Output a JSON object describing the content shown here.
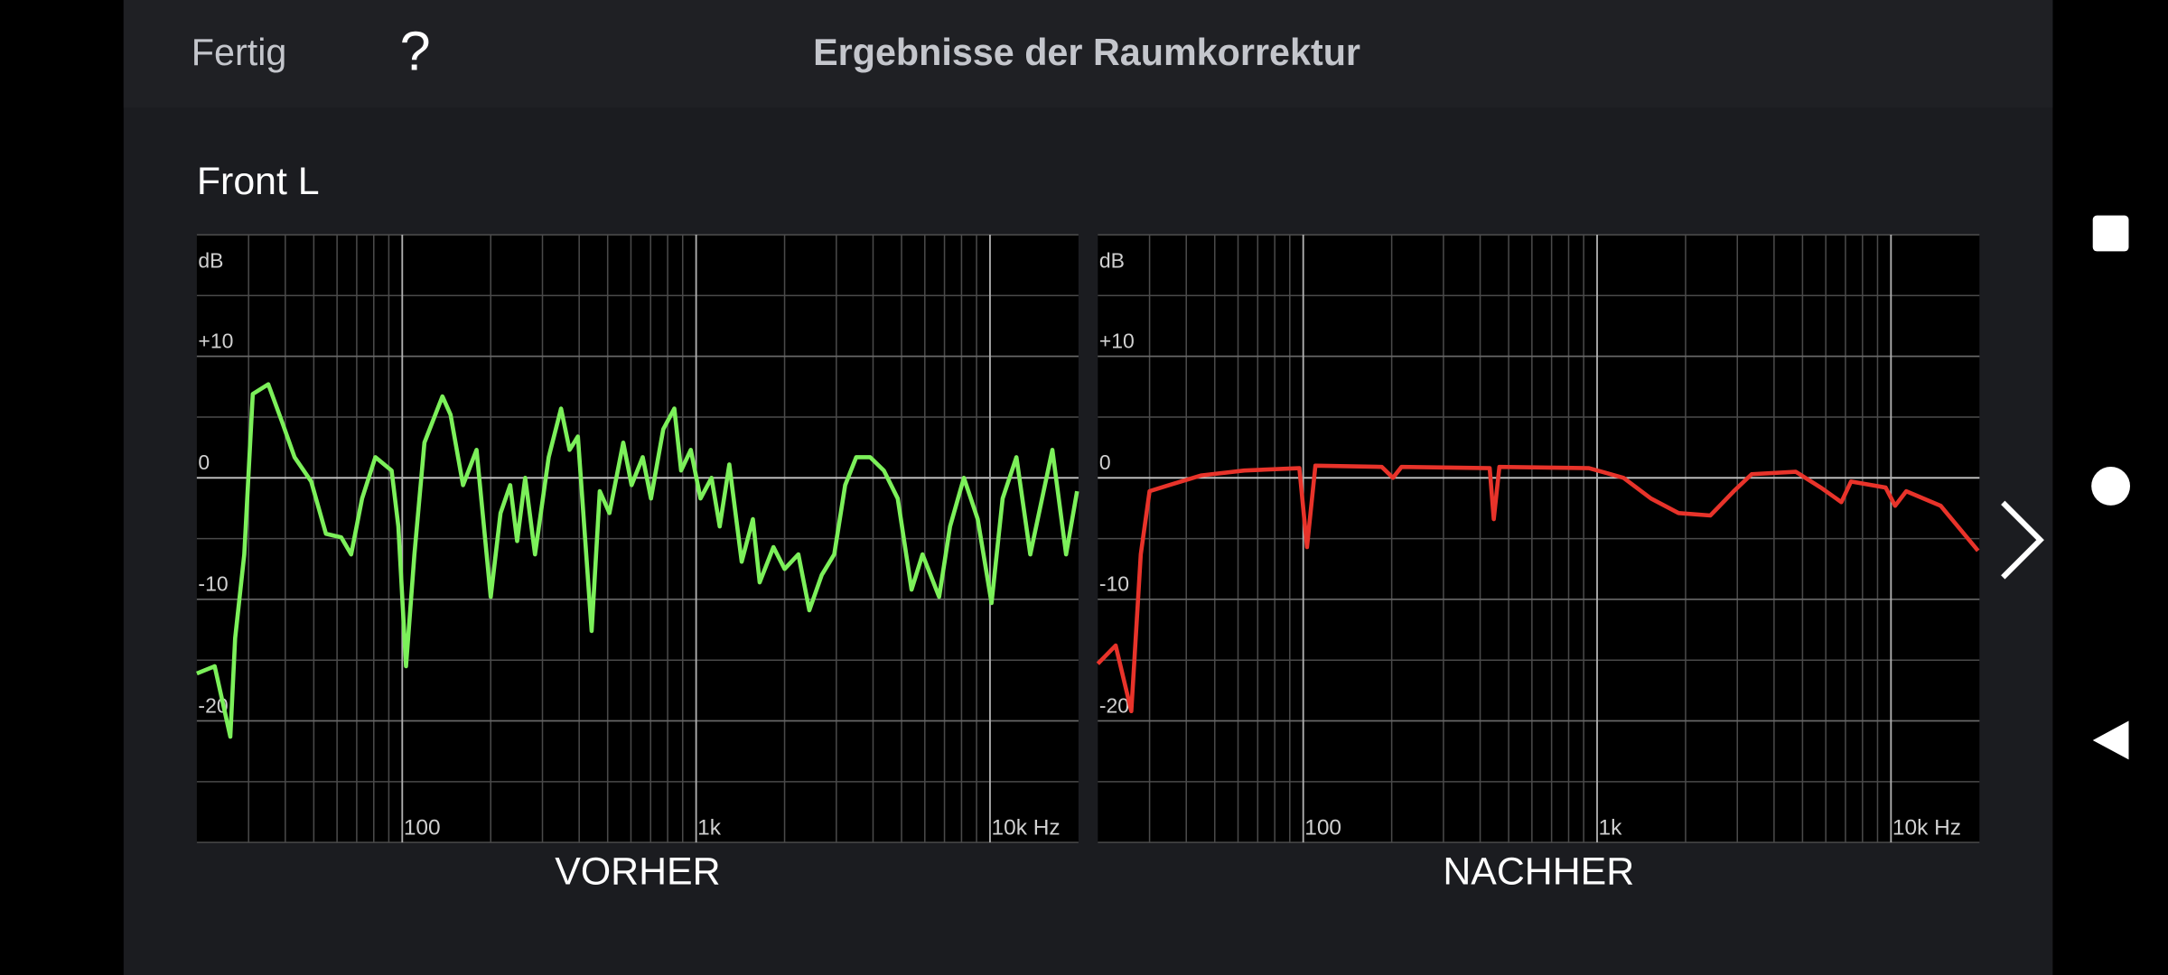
{
  "header": {
    "done": "Fertig",
    "help": "?",
    "title": "Ergebnisse der Raumkorrektur"
  },
  "section_title": "Front L",
  "chart_data": [
    {
      "type": "line",
      "title": "VORHER",
      "y_label": "dB",
      "x_scale": "log",
      "xlim": [
        20,
        20000
      ],
      "ylim": [
        -30,
        20
      ],
      "xticks": [
        100,
        {
          "value": 1000,
          "label": "1k"
        },
        {
          "value": 10000,
          "label": "10k Hz"
        }
      ],
      "yticks": [
        {
          "value": 10,
          "label": "+10"
        },
        0,
        -10,
        -20
      ],
      "y_gridlines": [
        -30,
        -25,
        -20,
        -15,
        -10,
        -5,
        0,
        5,
        10,
        15,
        20
      ],
      "x_minor_grid": true,
      "series": [
        {
          "color": "#7cf05a",
          "x": [
            20,
            23,
            26,
            27,
            29,
            31,
            35,
            39,
            43,
            49,
            55,
            62,
            67,
            73,
            81,
            92,
            97,
            103,
            110,
            119,
            137,
            146,
            161,
            179,
            200,
            216,
            233,
            246,
            262,
            283,
            315,
            347,
            371,
            396,
            441,
            470,
            507,
            565,
            603,
            658,
            702,
            773,
            843,
            889,
            959,
            1035,
            1128,
            1203,
            1297,
            1429,
            1560,
            1645,
            1833,
            2000,
            2228,
            2428,
            2675,
            2951,
            3215,
            3506,
            3907,
            4354,
            4853,
            5408,
            5893,
            6712,
            7313,
            8150,
            9082,
            10120,
            11040,
            12300,
            13710,
            16300,
            18150,
            19780
          ],
          "values": [
            -16.1,
            -15.5,
            -21.3,
            -13.2,
            -6.3,
            6.9,
            7.7,
            4.6,
            1.7,
            -0.3,
            -4.6,
            -4.9,
            -6.3,
            -1.7,
            1.7,
            0.6,
            -4.0,
            -15.5,
            -6.3,
            2.9,
            6.7,
            5.2,
            -0.6,
            2.3,
            -9.8,
            -2.9,
            -0.6,
            -5.2,
            0,
            -6.3,
            1.7,
            5.7,
            2.3,
            3.4,
            -12.6,
            -1.1,
            -2.9,
            2.9,
            -0.6,
            1.7,
            -1.7,
            4.0,
            5.7,
            0.6,
            2.3,
            -1.7,
            0,
            -4.0,
            1.1,
            -6.9,
            -3.4,
            -8.6,
            -5.7,
            -7.5,
            -6.3,
            -10.9,
            -8.0,
            -6.3,
            -0.6,
            1.7,
            1.7,
            0.6,
            -1.7,
            -9.2,
            -6.3,
            -9.8,
            -4.0,
            0,
            -3.4,
            -10.3,
            -1.7,
            1.7,
            -6.3,
            2.3,
            -6.3,
            -1.1
          ]
        }
      ]
    },
    {
      "type": "line",
      "title": "NACHHER",
      "y_label": "dB",
      "x_scale": "log",
      "xlim": [
        20,
        20000
      ],
      "ylim": [
        -30,
        20
      ],
      "xticks": [
        100,
        {
          "value": 1000,
          "label": "1k"
        },
        {
          "value": 10000,
          "label": "10k Hz"
        }
      ],
      "yticks": [
        {
          "value": 10,
          "label": "+10"
        },
        0,
        -10,
        -20
      ],
      "y_gridlines": [
        -30,
        -25,
        -20,
        -15,
        -10,
        -5,
        0,
        5,
        10,
        15,
        20
      ],
      "x_minor_grid": true,
      "series": [
        {
          "color": "#e8332a",
          "x": [
            20,
            23,
            26,
            28,
            30,
            35,
            45,
            63,
            97,
            103,
            110,
            185,
            202,
            216,
            431,
            445,
            465,
            938,
            1230,
            1525,
            1893,
            2428,
            2918,
            3357,
            4743,
            5766,
            6780,
            7313,
            9590,
            10330,
            11270,
            14760,
            19780
          ],
          "values": [
            -15.3,
            -13.8,
            -19.2,
            -6.3,
            -1.1,
            -0.6,
            0.2,
            0.6,
            0.8,
            -5.7,
            1.0,
            0.9,
            0,
            0.9,
            0.8,
            -3.4,
            0.9,
            0.8,
            0,
            -1.7,
            -2.9,
            -3.1,
            -1.1,
            0.3,
            0.5,
            -0.8,
            -2.0,
            -0.3,
            -0.8,
            -2.3,
            -1.1,
            -2.3,
            -6.0
          ]
        }
      ]
    }
  ]
}
